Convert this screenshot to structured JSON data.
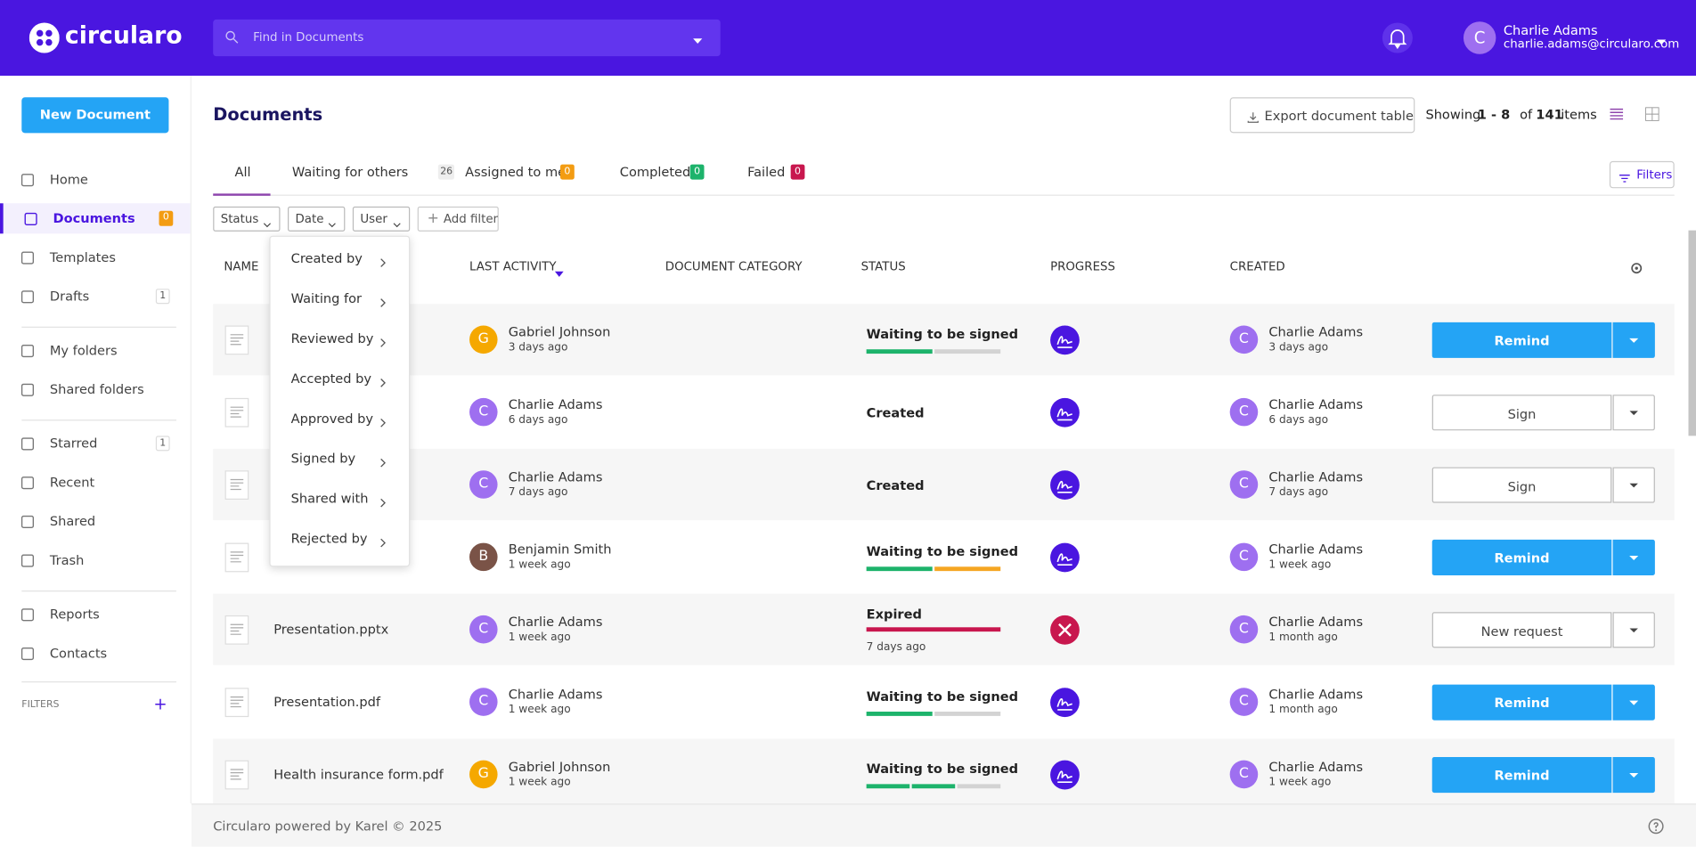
{
  "header": {
    "logo": "circularo",
    "search_placeholder": "Find in Documents",
    "user_initial": "C",
    "user_name": "Charlie Adams",
    "user_email": "charlie.adams@circularo.com"
  },
  "sidebar": {
    "new_document": "New Document",
    "nav": [
      {
        "label": "Home"
      },
      {
        "label": "Documents",
        "badge": "0"
      },
      {
        "label": "Templates"
      },
      {
        "label": "Drafts",
        "badge": "1"
      },
      {
        "label": "My folders"
      },
      {
        "label": "Shared folders"
      },
      {
        "label": "Starred",
        "badge": "1"
      },
      {
        "label": "Recent"
      },
      {
        "label": "Shared"
      },
      {
        "label": "Trash"
      },
      {
        "label": "Reports"
      },
      {
        "label": "Contacts"
      }
    ],
    "filters_label": "FILTERS"
  },
  "main": {
    "title": "Documents",
    "export": "Export document table",
    "showing": {
      "prefix": "Showing",
      "range": "1 - 8",
      "of": "of",
      "total": "141",
      "suffix": "items"
    },
    "tabs": [
      {
        "label": "All"
      },
      {
        "label": "Waiting for others",
        "count": "26",
        "color": "#eeeeee"
      },
      {
        "label": "Assigned to me",
        "count": "0",
        "color": "#f39c12"
      },
      {
        "label": "Completed",
        "count": "0",
        "color": "#1db36b"
      },
      {
        "label": "Failed",
        "count": "0",
        "color": "#c8174e"
      }
    ],
    "filters_button": "Filters",
    "filter_chips": [
      "Status",
      "Date",
      "User"
    ],
    "add_filter": "Add filter",
    "dropdown": [
      "Created by",
      "Waiting for",
      "Reviewed by",
      "Accepted by",
      "Approved by",
      "Signed by",
      "Shared with",
      "Rejected by"
    ],
    "columns": [
      "NAME",
      "LAST ACTIVITY",
      "DOCUMENT CATEGORY",
      "STATUS",
      "PROGRESS",
      "CREATED"
    ],
    "avatar_colors": {
      "G": "#f5a800",
      "C": "#9e6ff0",
      "B": "#7a5347"
    },
    "rows": [
      {
        "activity": {
          "initial": "G",
          "name": "Gabriel Johnson",
          "time": "3 days ago"
        },
        "status": "Waiting to be signed",
        "progress": [
          "#1db36b",
          "#d3d3d3"
        ],
        "progress_icon": "sign",
        "created": {
          "initial": "C",
          "name": "Charlie Adams",
          "time": "3 days ago"
        },
        "action": "Remind",
        "action_style": "primary"
      },
      {
        "activity": {
          "initial": "C",
          "name": "Charlie Adams",
          "time": "6 days ago"
        },
        "status": "Created",
        "progress": [],
        "progress_icon": "sign",
        "created": {
          "initial": "C",
          "name": "Charlie Adams",
          "time": "6 days ago"
        },
        "action": "Sign",
        "action_style": "secondary"
      },
      {
        "activity": {
          "initial": "C",
          "name": "Charlie Adams",
          "time": "7 days ago"
        },
        "status": "Created",
        "progress": [],
        "progress_icon": "sign",
        "created": {
          "initial": "C",
          "name": "Charlie Adams",
          "time": "7 days ago"
        },
        "action": "Sign",
        "action_style": "secondary"
      },
      {
        "activity": {
          "initial": "B",
          "name": "Benjamin Smith",
          "time": "1 week ago"
        },
        "status": "Waiting to be signed",
        "progress": [
          "#1db36b",
          "#f5a623"
        ],
        "progress_icon": "sign",
        "created": {
          "initial": "C",
          "name": "Charlie Adams",
          "time": "1 week ago"
        },
        "action": "Remind",
        "action_style": "primary"
      },
      {
        "name": "Presentation.pptx",
        "activity": {
          "initial": "C",
          "name": "Charlie Adams",
          "time": "1 week ago"
        },
        "status": "Expired",
        "status_note": "7 days ago",
        "progress": [
          "#c8174e"
        ],
        "progress_icon": "expired",
        "created": {
          "initial": "C",
          "name": "Charlie Adams",
          "time": "1 month ago"
        },
        "action": "New request",
        "action_style": "secondary"
      },
      {
        "name": "Presentation.pdf",
        "activity": {
          "initial": "C",
          "name": "Charlie Adams",
          "time": "1 week ago"
        },
        "status": "Waiting to be signed",
        "progress": [
          "#1db36b",
          "#d3d3d3"
        ],
        "progress_icon": "sign",
        "created": {
          "initial": "C",
          "name": "Charlie Adams",
          "time": "1 month ago"
        },
        "action": "Remind",
        "action_style": "primary"
      },
      {
        "name": "Health insurance form.pdf",
        "activity": {
          "initial": "G",
          "name": "Gabriel Johnson",
          "time": "1 week ago"
        },
        "status": "Waiting to be signed",
        "progress": [
          "#1db36b",
          "#1db36b",
          "#d3d3d3"
        ],
        "progress_icon": "sign",
        "created": {
          "initial": "C",
          "name": "Charlie Adams",
          "time": "1 week ago"
        },
        "action": "Remind",
        "action_style": "primary"
      }
    ]
  },
  "footer": {
    "text": "Circularo powered by Karel © 2025"
  }
}
